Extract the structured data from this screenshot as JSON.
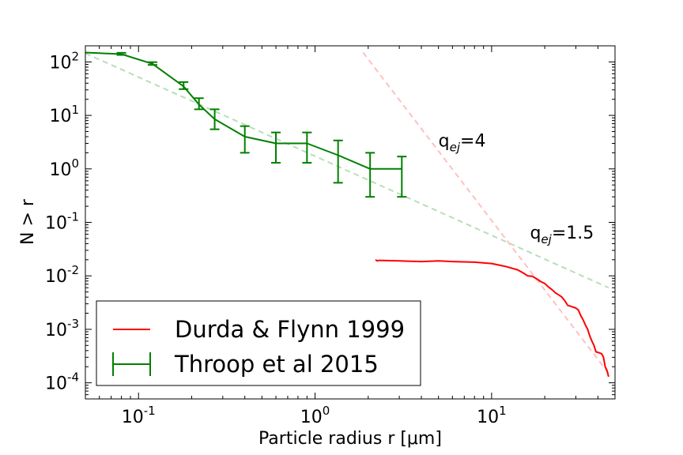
{
  "chart_data": {
    "type": "line",
    "title": "",
    "xlabel": "Particle radius r [μm]",
    "ylabel": "N > r",
    "xscale": "log",
    "yscale": "log",
    "xlim": [
      0.05,
      50
    ],
    "ylim": [
      5e-05,
      200
    ],
    "grid": false,
    "legend_position": "lower-left",
    "x_ticks": [
      {
        "value": 0.1,
        "base": "10",
        "exp": "-1"
      },
      {
        "value": 1,
        "base": "10",
        "exp": "0"
      },
      {
        "value": 10,
        "base": "10",
        "exp": "1"
      }
    ],
    "y_ticks": [
      {
        "value": 0.0001,
        "base": "10",
        "exp": "-4"
      },
      {
        "value": 0.001,
        "base": "10",
        "exp": "-3"
      },
      {
        "value": 0.01,
        "base": "10",
        "exp": "-2"
      },
      {
        "value": 0.1,
        "base": "10",
        "exp": "-1"
      },
      {
        "value": 1,
        "base": "10",
        "exp": "0"
      },
      {
        "value": 10,
        "base": "10",
        "exp": "1"
      },
      {
        "value": 100,
        "base": "10",
        "exp": "2"
      }
    ],
    "series": [
      {
        "name": "Durda & Flynn 1999",
        "color": "#ff0000",
        "style": "line",
        "x": [
          2.2,
          2.25,
          2.3,
          3.0,
          4.0,
          5.0,
          6.0,
          8.0,
          10.0,
          12.0,
          14.0,
          15.0,
          16.0,
          17.0,
          18.0,
          19.0,
          20.0,
          21.0,
          22.0,
          23.0,
          24.0,
          25.0,
          26.0,
          27.0,
          28.0,
          29.0,
          30.0,
          31.0,
          32.0,
          33.0,
          34.0,
          35.0,
          36.0,
          37.0,
          38.0,
          39.0,
          40.0,
          42.0,
          43.0,
          44.0,
          45.0,
          46.0
        ],
        "y": [
          0.02,
          0.019,
          0.0195,
          0.019,
          0.0185,
          0.019,
          0.0185,
          0.018,
          0.017,
          0.015,
          0.013,
          0.0115,
          0.01,
          0.0098,
          0.0088,
          0.0078,
          0.0072,
          0.0062,
          0.0055,
          0.0048,
          0.0044,
          0.004,
          0.0034,
          0.0028,
          0.0027,
          0.0026,
          0.0025,
          0.0023,
          0.0018,
          0.0015,
          0.0012,
          0.001,
          0.00075,
          0.0006,
          0.0005,
          0.00038,
          0.00037,
          0.00035,
          0.0003,
          0.0002,
          0.00017,
          0.00013
        ]
      },
      {
        "name": "Throop et al 2015",
        "color": "#008000",
        "style": "errorbar",
        "x": [
          0.05,
          0.08,
          0.12,
          0.18,
          0.22,
          0.27,
          0.4,
          0.6,
          0.9,
          1.35,
          2.05,
          3.1
        ],
        "y": [
          150,
          140,
          92,
          35,
          16,
          8.5,
          4.0,
          3.0,
          3.0,
          1.8,
          1.0,
          1.0
        ],
        "yerr_low": [
          150,
          135,
          88,
          31,
          13,
          5.5,
          2.0,
          1.3,
          1.3,
          0.55,
          0.3,
          0.3
        ],
        "yerr_high": [
          150,
          148,
          99,
          42,
          21,
          13,
          6.3,
          4.8,
          4.8,
          3.4,
          2.0,
          1.7
        ]
      },
      {
        "name": "",
        "color": "#b8deb8",
        "style": "dashed",
        "x": [
          0.05,
          46
        ],
        "y": [
          145,
          0.006
        ]
      },
      {
        "name": "",
        "color": "#ffc0c0",
        "style": "dashed",
        "x": [
          1.87,
          46
        ],
        "y": [
          150,
          0.00015
        ]
      }
    ],
    "annotations": [
      {
        "base": "q",
        "sub": "ej",
        "tail": "=4",
        "x": 5.0,
        "y": 2.6
      },
      {
        "base": "q",
        "sub": "ej",
        "tail": "=1.5",
        "x": 16.5,
        "y": 0.05
      }
    ]
  }
}
